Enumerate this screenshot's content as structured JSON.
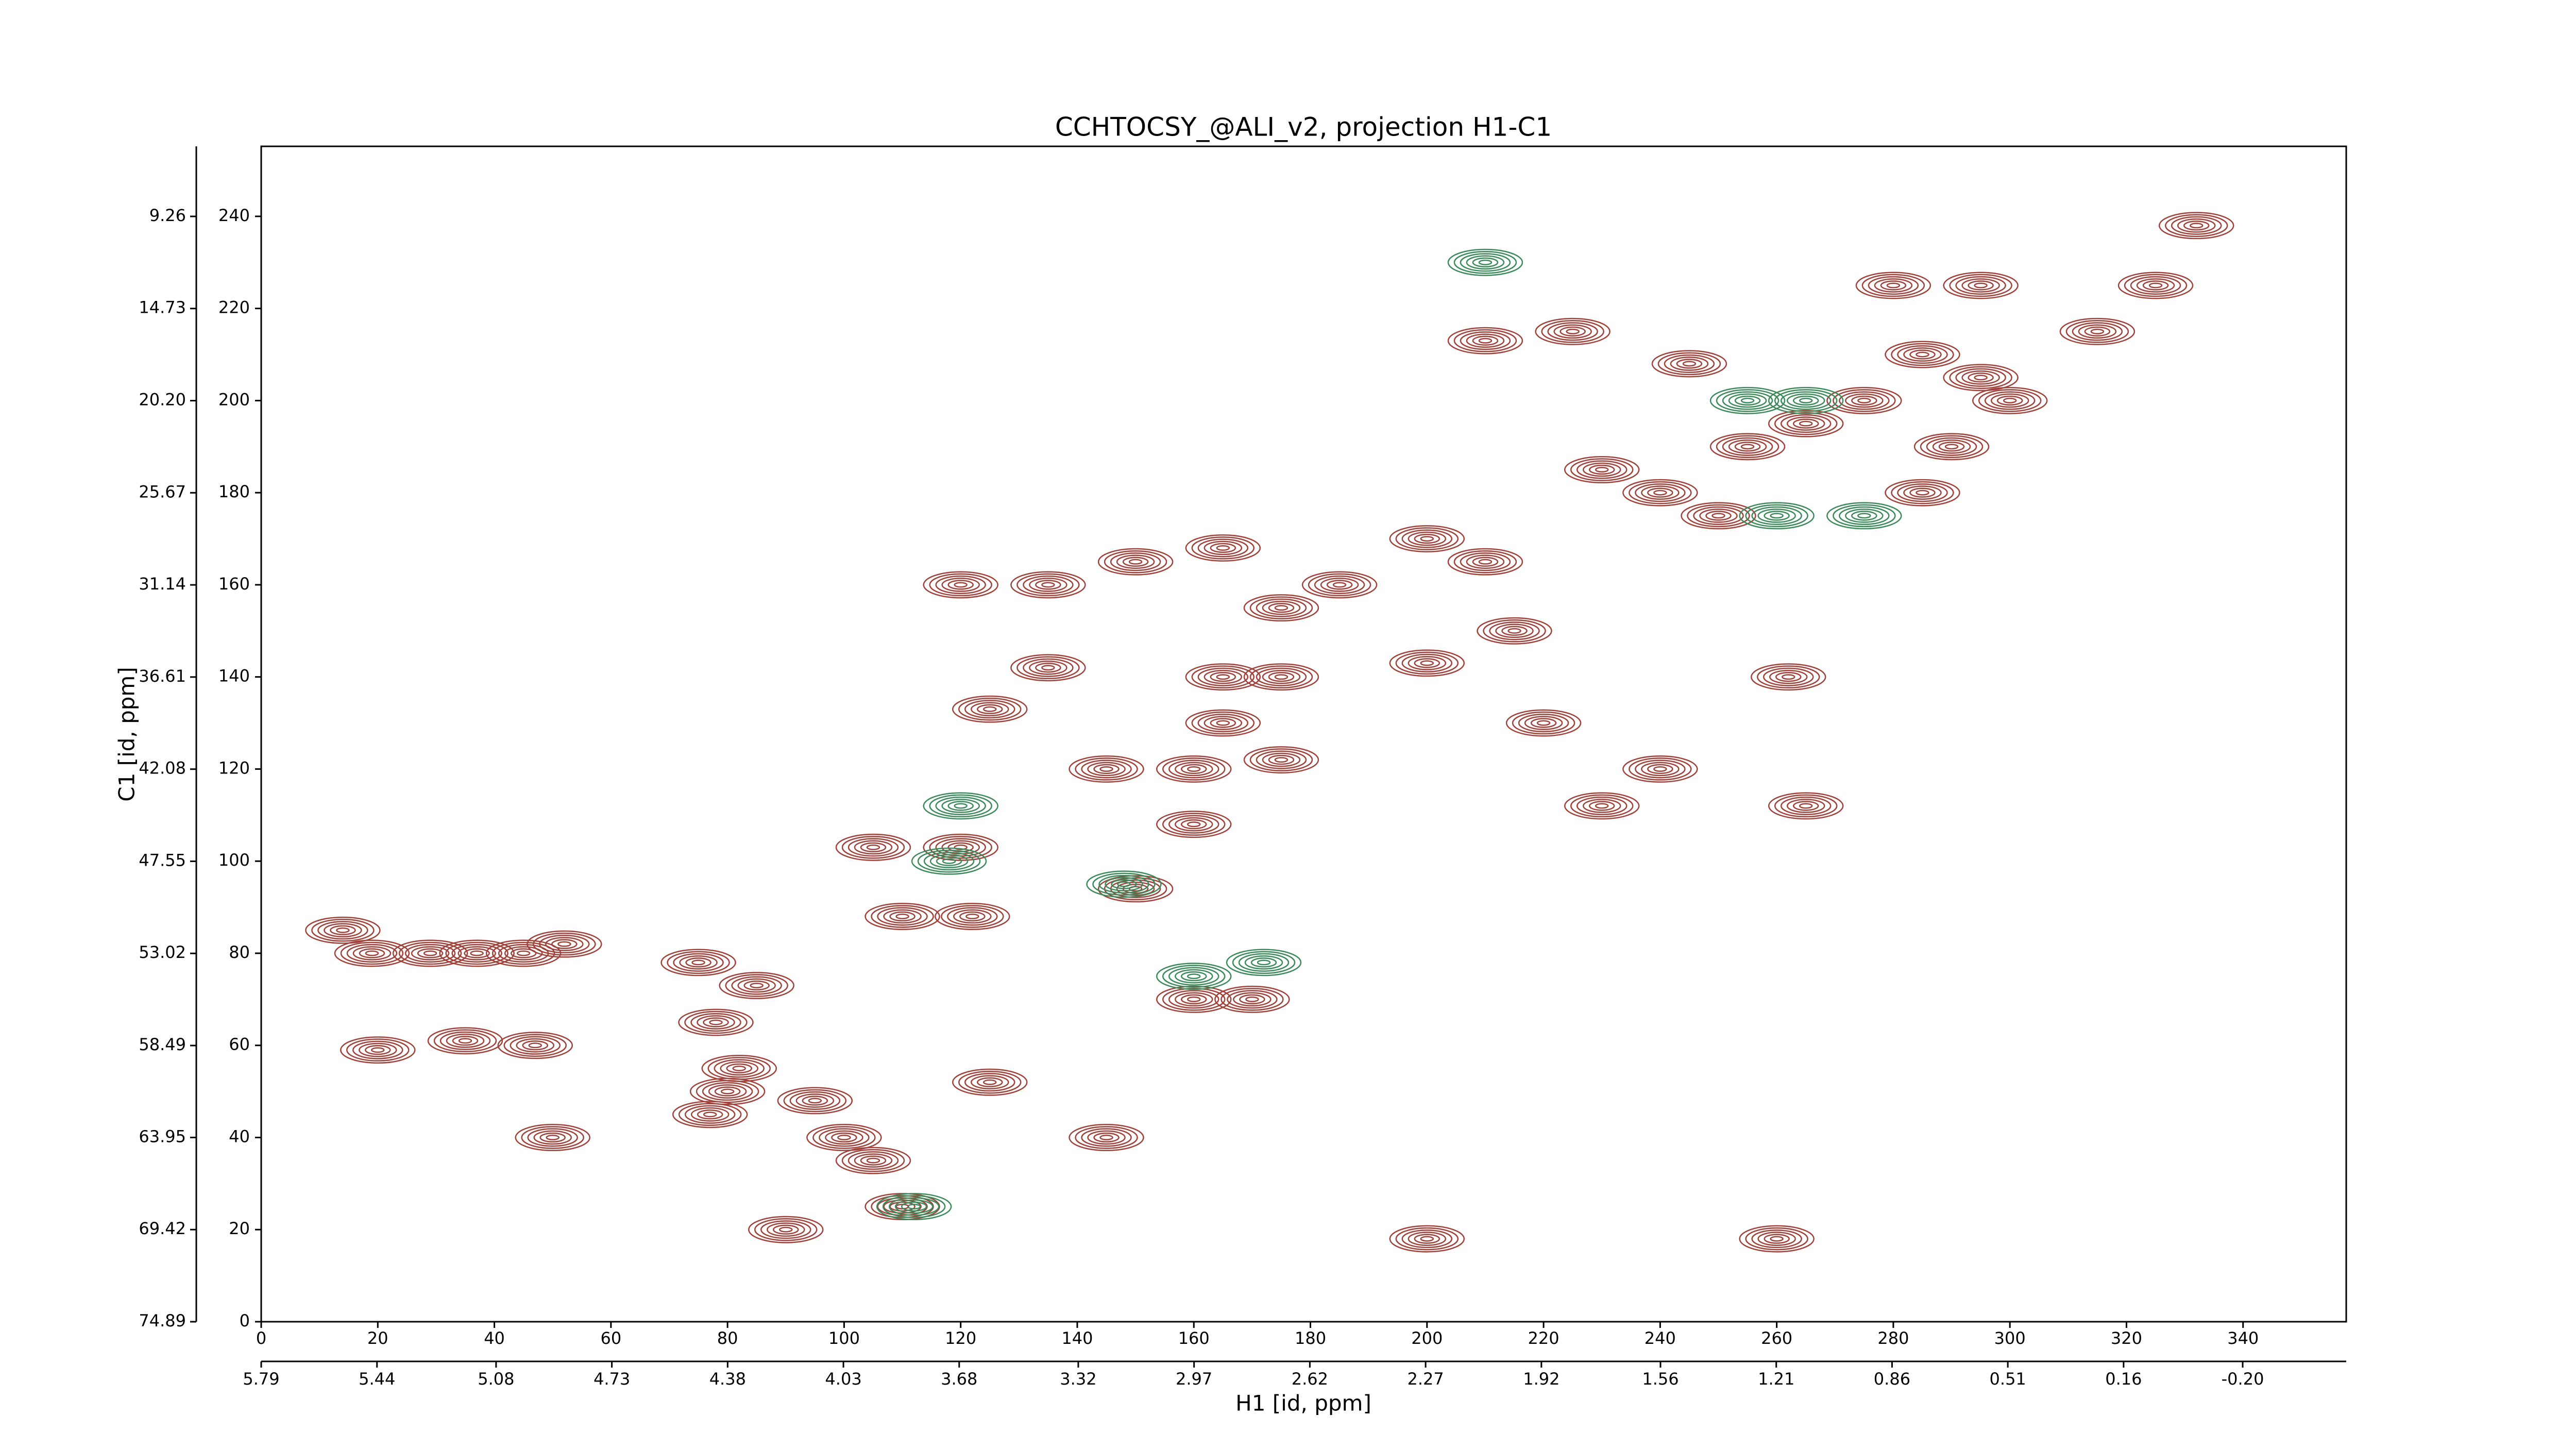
{
  "chart_data": {
    "type": "contour",
    "title": "CCHTOCSY_@ALI_v2, projection H1-C1",
    "x_label": "H1 [id, ppm]",
    "y_label": "C1 [id, ppm]",
    "xlim": [
      0,
      357.7
    ],
    "xticks": [
      0,
      20,
      40,
      60,
      80,
      100,
      120,
      140,
      160,
      180,
      200,
      220,
      240,
      260,
      280,
      300,
      320,
      340
    ],
    "ylim": [
      0,
      255.2
    ],
    "yticks": [
      0,
      20,
      40,
      60,
      80,
      100,
      120,
      140,
      160,
      180,
      200,
      220,
      240
    ],
    "x2lim": [
      5.79,
      -0.513
    ],
    "x2ticks": [
      5.79,
      5.44,
      5.08,
      4.73,
      4.38,
      4.03,
      3.68,
      3.32,
      2.97,
      2.62,
      2.27,
      1.92,
      1.56,
      1.21,
      0.86,
      0.51,
      0.16,
      {
        "value": -0.2,
        "label": "-0.20"
      }
    ],
    "y2lim": [
      74.89,
      5.1
    ],
    "y2ticks": [
      74.89,
      69.42,
      63.95,
      58.49,
      53.02,
      47.55,
      42.08,
      36.61,
      31.14,
      25.67,
      {
        "value": 20.2,
        "label": "20.20"
      },
      14.73,
      9.26
    ],
    "series": [
      {
        "color": "#a0413a",
        "x": [
          14,
          19,
          29,
          37,
          45,
          52,
          20,
          35,
          47,
          50,
          75,
          85,
          78,
          82,
          80,
          77,
          95,
          100,
          105,
          110,
          90,
          110,
          122,
          105,
          120,
          150,
          125,
          170,
          160,
          120,
          135,
          150,
          165,
          175,
          135,
          125,
          165,
          175,
          165,
          145,
          160,
          175,
          185,
          200,
          210,
          215,
          200,
          220,
          230,
          240,
          250,
          255,
          265,
          275,
          285,
          295,
          300,
          285,
          290,
          210,
          225,
          245,
          280,
          295,
          315,
          325,
          332,
          240,
          230,
          265,
          262,
          160,
          145,
          200,
          260
        ],
        "y": [
          85,
          80,
          80,
          80,
          80,
          82,
          59,
          61,
          60,
          40,
          78,
          73,
          65,
          55,
          50,
          45,
          48,
          40,
          35,
          25,
          20,
          88,
          88,
          103,
          103,
          94,
          52,
          70,
          70,
          160,
          160,
          165,
          168,
          155,
          142,
          133,
          140,
          140,
          130,
          120,
          120,
          122,
          160,
          170,
          165,
          150,
          143,
          130,
          185,
          180,
          175,
          190,
          195,
          200,
          210,
          205,
          200,
          180,
          190,
          213,
          215,
          208,
          225,
          225,
          215,
          225,
          238,
          120,
          112,
          112,
          140,
          108,
          40,
          18,
          18
        ]
      },
      {
        "color": "#3c8a5a",
        "x": [
          120,
          118,
          148,
          160,
          172,
          112,
          260,
          275,
          255,
          265,
          210
        ],
        "y": [
          112,
          100,
          95,
          75,
          78,
          25,
          175,
          175,
          200,
          200,
          230
        ]
      }
    ]
  }
}
